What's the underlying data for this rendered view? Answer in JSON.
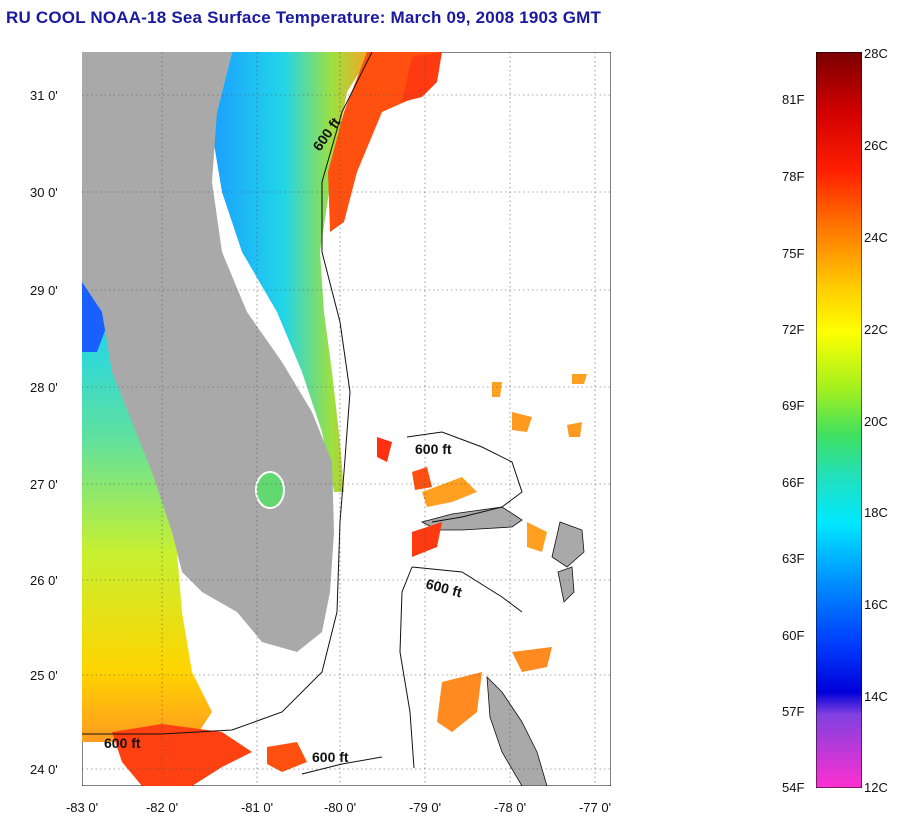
{
  "title": "RU COOL  NOAA-18  Sea Surface Temperature:  March 09, 2008 1903 GMT",
  "axes": {
    "lat_labels": [
      "31 0'",
      "30 0'",
      "29 0'",
      "28 0'",
      "27 0'",
      "26 0'",
      "25 0'",
      "24 0'"
    ],
    "lon_labels": [
      "-83 0'",
      "-82 0'",
      "-81 0'",
      "-80 0'",
      "-79 0'",
      "-78 0'",
      "-77 0'"
    ]
  },
  "contour_labels": [
    "600 ft",
    "600 ft",
    "600 ft",
    "600 ft",
    "600 ft"
  ],
  "colorbar": {
    "fahrenheit_labels": [
      "81F",
      "78F",
      "75F",
      "72F",
      "69F",
      "66F",
      "63F",
      "60F",
      "57F",
      "54F"
    ],
    "celsius_labels": [
      "28C",
      "26C",
      "24C",
      "22C",
      "20C",
      "18C",
      "16C",
      "14C",
      "12C"
    ]
  },
  "colors": {
    "title": "#1a1aa0",
    "land": "#a9a9a9",
    "ocean_missing": "#ffffff",
    "gulf_stream": "#ff4a10"
  }
}
